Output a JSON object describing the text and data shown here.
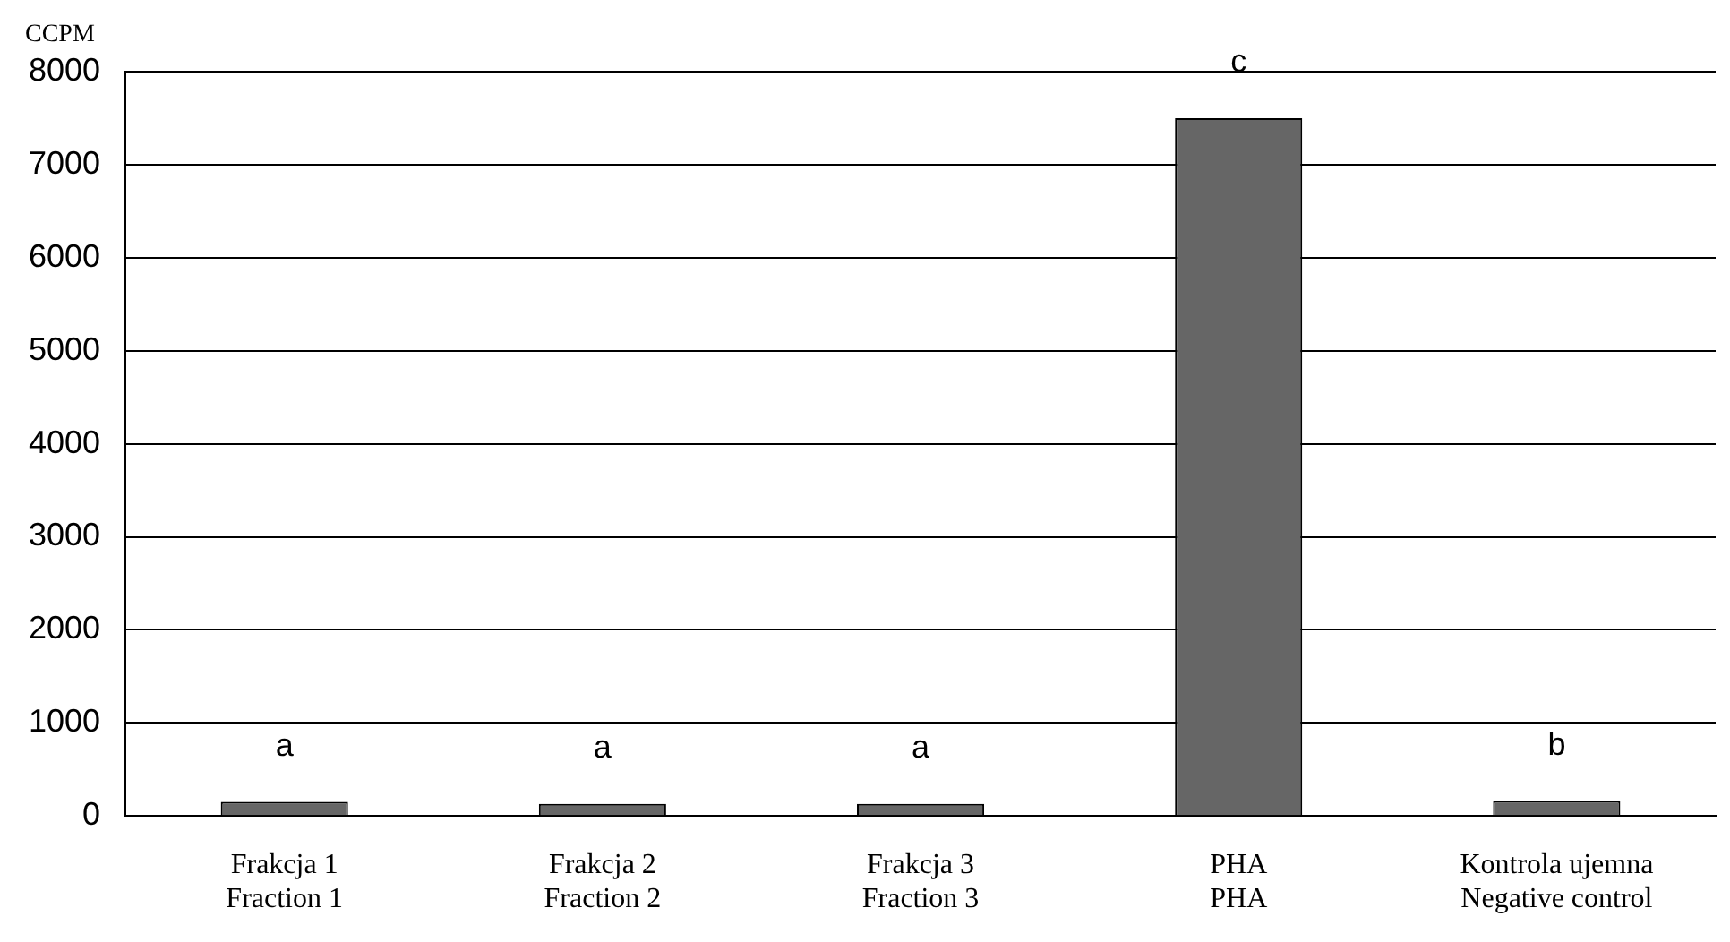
{
  "chart_data": {
    "type": "bar",
    "ylabel": "CCPM",
    "categories": [
      "Frakcja 1\nFraction 1",
      "Frakcja 2\nFraction 2",
      "Frakcja 3\nFraction 3",
      "PHA\nPHA",
      "Kontrola ujemna\nNegative control"
    ],
    "values": [
      150,
      130,
      130,
      7500,
      160
    ],
    "color": "#666666",
    "ylim": [
      0,
      8000
    ],
    "yticks": [
      0,
      1000,
      2000,
      3000,
      4000,
      5000,
      6000,
      7000,
      8000
    ],
    "grid": "y",
    "legend": false,
    "annotations": [
      {
        "text": "a",
        "x": "Frakcja 1\nFraction 1",
        "y": 150
      },
      {
        "text": "a",
        "x": "Frakcja 2\nFraction 2",
        "y": 130
      },
      {
        "text": "a",
        "x": "Frakcja 3\nFraction 3",
        "y": 130
      },
      {
        "text": "c",
        "x": "PHA\nPHA",
        "y": 7500
      },
      {
        "text": "b",
        "x": "Kontrola ujemna\nNegative control",
        "y": 160
      }
    ]
  }
}
